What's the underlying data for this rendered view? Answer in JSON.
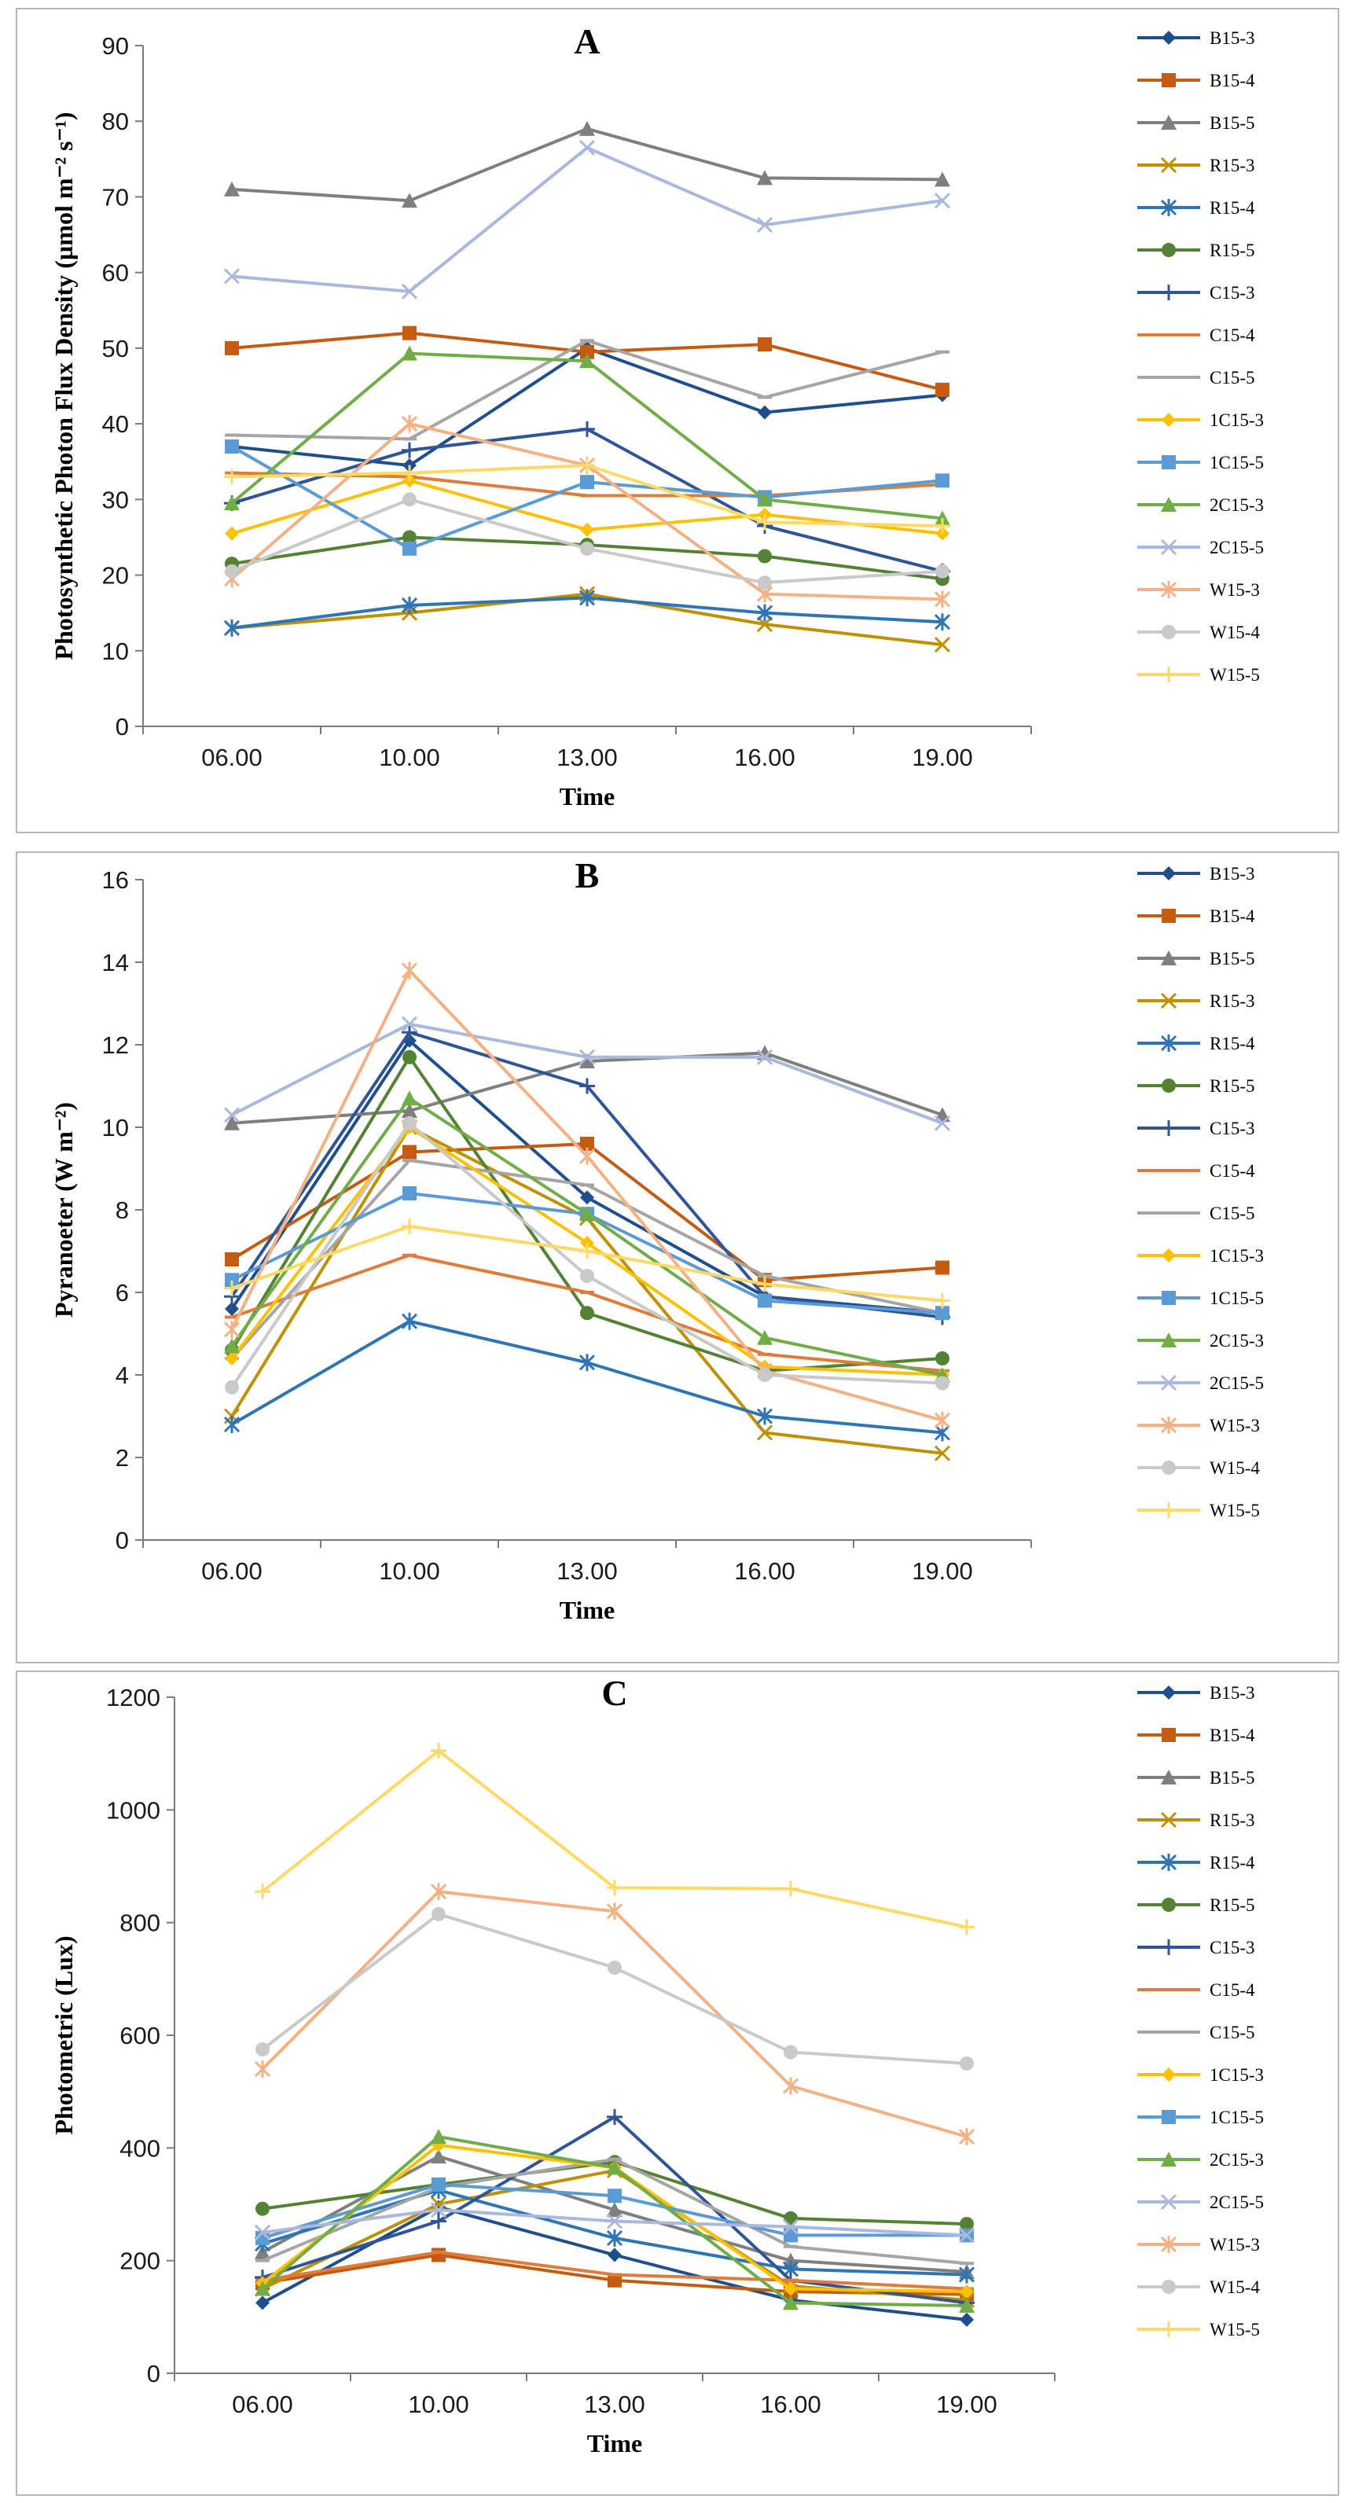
{
  "series_styles": [
    {
      "name": "B15-3",
      "color": "#1f4e8c",
      "marker": "diamond"
    },
    {
      "name": "B15-4",
      "color": "#c55a11",
      "marker": "square"
    },
    {
      "name": "B15-5",
      "color": "#7f7f7f",
      "marker": "triangle"
    },
    {
      "name": "R15-3",
      "color": "#bf9000",
      "marker": "x"
    },
    {
      "name": "R15-4",
      "color": "#2e75b6",
      "marker": "star"
    },
    {
      "name": "R15-5",
      "color": "#548235",
      "marker": "circle"
    },
    {
      "name": "C15-3",
      "color": "#2f5597",
      "marker": "plus"
    },
    {
      "name": "C15-4",
      "color": "#e07b39",
      "marker": "dash"
    },
    {
      "name": "C15-5",
      "color": "#a5a5a5",
      "marker": "dash"
    },
    {
      "name": "1C15-3",
      "color": "#ffc000",
      "marker": "diamond"
    },
    {
      "name": "1C15-5",
      "color": "#5b9bd5",
      "marker": "square"
    },
    {
      "name": "2C15-3",
      "color": "#70ad47",
      "marker": "triangle"
    },
    {
      "name": "2C15-5",
      "color": "#a9b8dc",
      "marker": "x"
    },
    {
      "name": "W15-3",
      "color": "#f4b183",
      "marker": "star"
    },
    {
      "name": "W15-4",
      "color": "#c9c9c9",
      "marker": "circle"
    },
    {
      "name": "W15-5",
      "color": "#ffd966",
      "marker": "plus"
    }
  ],
  "chart_data": [
    {
      "id": "A",
      "type": "line",
      "title": "A",
      "xlabel": "Time",
      "ylabel": "Photosynthetic Photon Flux Density (µmol m⁻² s⁻¹)",
      "categories": [
        "06.00",
        "10.00",
        "13.00",
        "16.00",
        "19.00"
      ],
      "ylim": [
        0,
        90
      ],
      "yticks": [
        0,
        10,
        20,
        30,
        40,
        50,
        60,
        70,
        80,
        90
      ],
      "legend": "right",
      "series": [
        {
          "name": "B15-3",
          "values": [
            37,
            34.5,
            50,
            41.5,
            43.8
          ]
        },
        {
          "name": "B15-4",
          "values": [
            50,
            52,
            49.5,
            50.5,
            44.5
          ]
        },
        {
          "name": "B15-5",
          "values": [
            71,
            69.5,
            79,
            72.5,
            72.3
          ]
        },
        {
          "name": "R15-3",
          "values": [
            13,
            15,
            17.5,
            13.5,
            10.8
          ]
        },
        {
          "name": "R15-4",
          "values": [
            13,
            16,
            17,
            15,
            13.8
          ]
        },
        {
          "name": "R15-5",
          "values": [
            21.5,
            25,
            24,
            22.5,
            19.5
          ]
        },
        {
          "name": "C15-3",
          "values": [
            29.5,
            36.5,
            39.3,
            26.5,
            20.5
          ]
        },
        {
          "name": "C15-4",
          "values": [
            33.5,
            33,
            30.5,
            30.5,
            32
          ]
        },
        {
          "name": "C15-5",
          "values": [
            38.5,
            38,
            51,
            43.5,
            49.5
          ]
        },
        {
          "name": "1C15-3",
          "values": [
            25.5,
            32.5,
            26,
            28,
            25.5
          ]
        },
        {
          "name": "1C15-5",
          "values": [
            37,
            23.5,
            32.3,
            30.3,
            32.5
          ]
        },
        {
          "name": "2C15-3",
          "values": [
            29.5,
            49.3,
            48.3,
            30,
            27.5
          ]
        },
        {
          "name": "2C15-5",
          "values": [
            59.5,
            57.5,
            76.5,
            66.3,
            69.5
          ]
        },
        {
          "name": "W15-3",
          "values": [
            19.5,
            40,
            34.5,
            17.5,
            16.8
          ]
        },
        {
          "name": "W15-4",
          "values": [
            20.5,
            30,
            23.5,
            19,
            20.5
          ]
        },
        {
          "name": "W15-5",
          "values": [
            33,
            33.5,
            34.5,
            27,
            26.5
          ]
        }
      ]
    },
    {
      "id": "B",
      "type": "line",
      "title": "B",
      "xlabel": "Time",
      "ylabel": "Pyranoeter (W m⁻²)",
      "categories": [
        "06.00",
        "10.00",
        "13.00",
        "16.00",
        "19.00"
      ],
      "ylim": [
        0,
        16
      ],
      "yticks": [
        0,
        2,
        4,
        6,
        8,
        10,
        12,
        14,
        16
      ],
      "legend": "right",
      "series": [
        {
          "name": "B15-3",
          "values": [
            5.6,
            12.1,
            8.3,
            5.9,
            5.5
          ]
        },
        {
          "name": "B15-4",
          "values": [
            6.8,
            9.4,
            9.6,
            6.3,
            6.6
          ]
        },
        {
          "name": "B15-5",
          "values": [
            10.1,
            10.4,
            11.6,
            11.8,
            10.3
          ]
        },
        {
          "name": "R15-3",
          "values": [
            3,
            10,
            7.8,
            2.6,
            2.1
          ]
        },
        {
          "name": "R15-4",
          "values": [
            2.8,
            5.3,
            4.3,
            3,
            2.6
          ]
        },
        {
          "name": "R15-5",
          "values": [
            4.6,
            11.7,
            5.5,
            4.1,
            4.4
          ]
        },
        {
          "name": "C15-3",
          "values": [
            5.9,
            12.3,
            11,
            5.9,
            5.4
          ]
        },
        {
          "name": "C15-4",
          "values": [
            5.4,
            6.9,
            6,
            4.5,
            4.1
          ]
        },
        {
          "name": "C15-5",
          "values": [
            4.4,
            9.2,
            8.6,
            6.4,
            5.5
          ]
        },
        {
          "name": "1C15-3",
          "values": [
            4.4,
            10,
            7.2,
            4.2,
            4
          ]
        },
        {
          "name": "1C15-5",
          "values": [
            6.3,
            8.4,
            7.9,
            5.8,
            5.5
          ]
        },
        {
          "name": "2C15-3",
          "values": [
            4.7,
            10.7,
            7.9,
            4.9,
            4
          ]
        },
        {
          "name": "2C15-5",
          "values": [
            10.3,
            12.5,
            11.7,
            11.7,
            10.1
          ]
        },
        {
          "name": "W15-3",
          "values": [
            5.1,
            13.8,
            9.3,
            4.1,
            2.9
          ]
        },
        {
          "name": "W15-4",
          "values": [
            3.7,
            10.1,
            6.4,
            4,
            3.8
          ]
        },
        {
          "name": "W15-5",
          "values": [
            6.1,
            7.6,
            7,
            6.2,
            5.8
          ]
        }
      ]
    },
    {
      "id": "C",
      "type": "line",
      "title": "C",
      "xlabel": "Time",
      "ylabel": "Photometric (Lux)",
      "categories": [
        "06.00",
        "10.00",
        "13.00",
        "16.00",
        "19.00"
      ],
      "ylim": [
        0,
        1200
      ],
      "yticks": [
        0,
        200,
        400,
        600,
        800,
        1000,
        1200
      ],
      "legend": "right",
      "series": [
        {
          "name": "B15-3",
          "values": [
            125,
            295,
            210,
            130,
            95
          ]
        },
        {
          "name": "B15-4",
          "values": [
            160,
            210,
            165,
            145,
            140
          ]
        },
        {
          "name": "B15-5",
          "values": [
            215,
            385,
            290,
            200,
            180
          ]
        },
        {
          "name": "R15-3",
          "values": [
            150,
            300,
            360,
            155,
            130
          ]
        },
        {
          "name": "R15-4",
          "values": [
            230,
            325,
            240,
            185,
            175
          ]
        },
        {
          "name": "R15-5",
          "values": [
            292,
            335,
            375,
            275,
            265
          ]
        },
        {
          "name": "C15-3",
          "values": [
            170,
            270,
            455,
            165,
            125
          ]
        },
        {
          "name": "C15-4",
          "values": [
            165,
            215,
            175,
            165,
            150
          ]
        },
        {
          "name": "C15-5",
          "values": [
            200,
            330,
            380,
            225,
            195
          ]
        },
        {
          "name": "1C15-3",
          "values": [
            160,
            405,
            365,
            150,
            145
          ]
        },
        {
          "name": "1C15-5",
          "values": [
            240,
            335,
            315,
            245,
            245
          ]
        },
        {
          "name": "2C15-3",
          "values": [
            150,
            420,
            365,
            125,
            120
          ]
        },
        {
          "name": "2C15-5",
          "values": [
            250,
            290,
            270,
            260,
            245
          ]
        },
        {
          "name": "W15-3",
          "values": [
            540,
            855,
            820,
            510,
            420
          ]
        },
        {
          "name": "W15-4",
          "values": [
            575,
            815,
            720,
            570,
            550
          ]
        },
        {
          "name": "W15-5",
          "values": [
            855,
            1105,
            862,
            860,
            792
          ]
        }
      ]
    }
  ]
}
